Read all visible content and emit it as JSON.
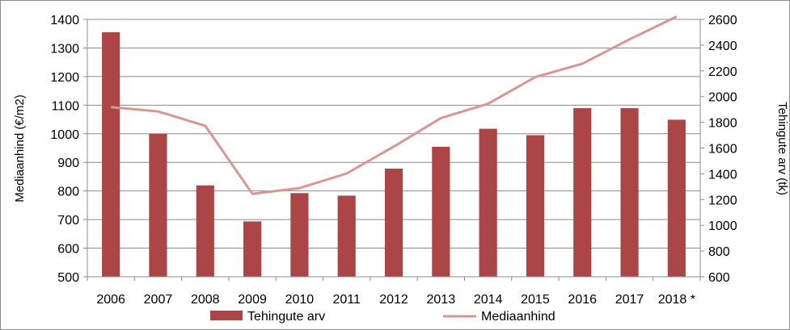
{
  "chart_data": {
    "type": "bar",
    "title": "",
    "categories": [
      "2006",
      "2007",
      "2008",
      "2009",
      "2010",
      "2011",
      "2012",
      "2013",
      "2014",
      "2015",
      "2016",
      "2017",
      "2018 *"
    ],
    "series": [
      {
        "name": "Tehingute arv",
        "type": "bar",
        "axis": "right",
        "color": "#ab4546",
        "values": [
          2500,
          1710,
          1310,
          1030,
          1250,
          1230,
          1440,
          1610,
          1750,
          1700,
          1910,
          1910,
          1820
        ]
      },
      {
        "name": "Mediaanhind",
        "type": "line",
        "axis": "left",
        "color": "#d99694",
        "values": [
          1093,
          1078,
          1028,
          790,
          810,
          861,
          955,
          1055,
          1105,
          1198,
          1245,
          1330,
          1410
        ]
      }
    ],
    "y_left": {
      "label": "Mediaanhind (€/m2)",
      "min": 500,
      "max": 1400,
      "step": 100
    },
    "y_right": {
      "label": "Tehingute arv (tk)",
      "min": 600,
      "max": 2600,
      "step": 200
    },
    "grid": true,
    "legend_position": "bottom"
  }
}
